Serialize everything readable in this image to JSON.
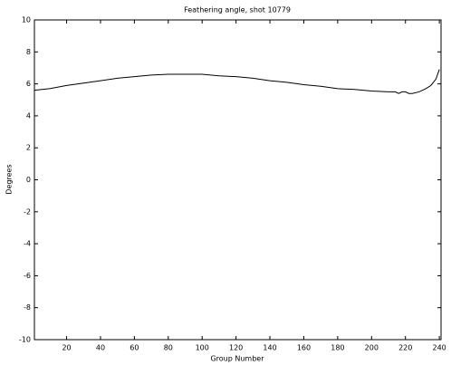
{
  "chart_data": {
    "type": "line",
    "title": "Feathering angle, shot 10779",
    "xlabel": "Group Number",
    "ylabel": "Degrees",
    "x": [
      1,
      10,
      20,
      30,
      40,
      50,
      60,
      70,
      80,
      90,
      100,
      110,
      120,
      130,
      140,
      150,
      160,
      170,
      180,
      190,
      200,
      210,
      214,
      216,
      218,
      220,
      222,
      224,
      228,
      232,
      235,
      238,
      240
    ],
    "series": [
      {
        "name": "Feathering angle",
        "color": "#000000",
        "values": [
          5.6,
          5.7,
          5.9,
          6.05,
          6.2,
          6.35,
          6.45,
          6.55,
          6.6,
          6.6,
          6.6,
          6.5,
          6.45,
          6.35,
          6.2,
          6.1,
          5.95,
          5.85,
          5.7,
          5.65,
          5.55,
          5.5,
          5.5,
          5.4,
          5.5,
          5.5,
          5.4,
          5.4,
          5.5,
          5.7,
          5.9,
          6.3,
          6.9
        ]
      }
    ],
    "xlim": [
      1,
      241
    ],
    "ylim": [
      -10,
      10
    ],
    "xticks": [
      20,
      40,
      60,
      80,
      100,
      120,
      140,
      160,
      180,
      200,
      220,
      240
    ],
    "yticks": [
      -10,
      -8,
      -6,
      -4,
      -2,
      0,
      2,
      4,
      6,
      8,
      10
    ]
  }
}
